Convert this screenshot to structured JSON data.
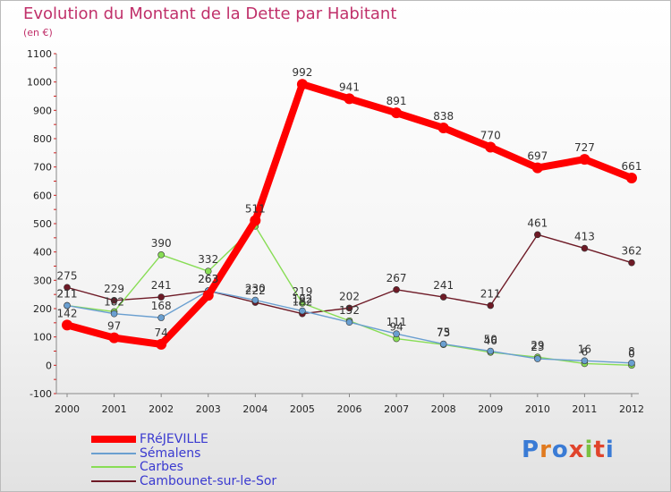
{
  "title": "Evolution du Montant de la Dette par Habitant",
  "subtitle": "(en €)",
  "logo": {
    "text": "Proxiti",
    "colors": [
      "#3a7bd5",
      "#e07a1f",
      "#3a7bd5",
      "#e0442c",
      "#7ac142",
      "#e0442c",
      "#3a7bd5"
    ]
  },
  "chart_data": {
    "type": "line",
    "title": "Evolution du Montant de la Dette par Habitant",
    "subtitle": "(en €)",
    "categories": [
      "2000",
      "2001",
      "2002",
      "2003",
      "2004",
      "2005",
      "2006",
      "2007",
      "2008",
      "2009",
      "2010",
      "2011",
      "2012"
    ],
    "yticks": [
      "-100",
      "0",
      "100",
      "200",
      "300",
      "400",
      "500",
      "600",
      "700",
      "800",
      "900",
      "1000",
      "1100"
    ],
    "ylim": [
      -100,
      1100
    ],
    "grid": false,
    "legend_position": "bottom-left",
    "series": [
      {
        "name": "FRéJEVILLE",
        "color": "#ff0000",
        "values": [
          142,
          97,
          74,
          247,
          511,
          992,
          941,
          891,
          838,
          770,
          697,
          727,
          661
        ],
        "labels": [
          "142",
          "97",
          "74",
          "",
          "511",
          "992",
          "941",
          "891",
          "838",
          "770",
          "697",
          "727",
          "661"
        ]
      },
      {
        "name": "Sémalens",
        "color": "#6a9fd0",
        "values": [
          211,
          182,
          168,
          263,
          230,
          192,
          152,
          111,
          75,
          50,
          23,
          16,
          8
        ],
        "labels": [
          "211",
          "182",
          "168",
          "263",
          "230",
          "192",
          "152",
          "111",
          "75",
          "50",
          "23",
          "16",
          "8"
        ]
      },
      {
        "name": "Carbes",
        "color": "#88dd55",
        "values": [
          211,
          189,
          390,
          332,
          491,
          219,
          157,
          94,
          73,
          46,
          29,
          6,
          0
        ],
        "labels": [
          "211",
          "",
          "390",
          "332",
          "",
          "219",
          "",
          "94",
          "73",
          "46",
          "29",
          "6",
          "0"
        ]
      },
      {
        "name": "Cambounet-sur-le-Sor",
        "color": "#6e1a26",
        "values": [
          275,
          229,
          241,
          263,
          222,
          182,
          202,
          267,
          241,
          211,
          461,
          413,
          362
        ],
        "labels": [
          "275",
          "229",
          "241",
          "263",
          "222",
          "182",
          "202",
          "267",
          "241",
          "211",
          "461",
          "413",
          "362"
        ]
      }
    ]
  }
}
